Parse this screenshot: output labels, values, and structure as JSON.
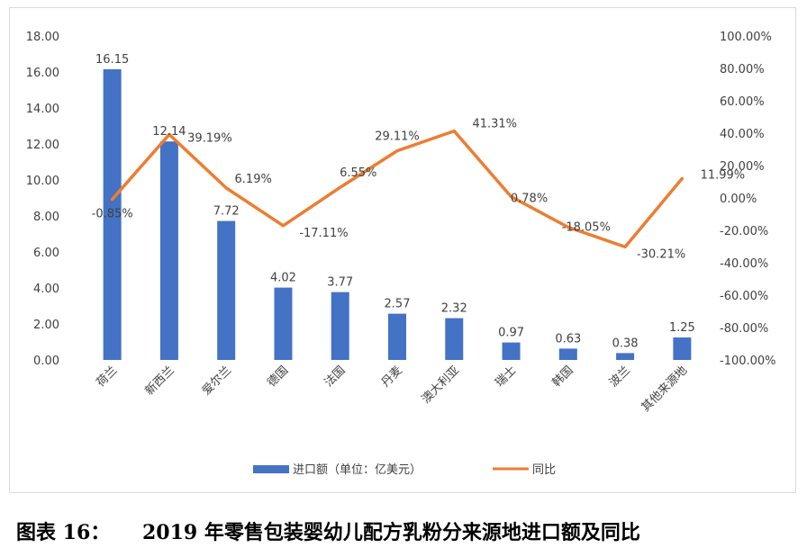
{
  "caption": {
    "label": "图表 16：",
    "title": "2019 年零售包装婴幼儿配方乳粉分来源地进口额及同比"
  },
  "chart_data": {
    "type": "bar+line",
    "categories": [
      "荷兰",
      "新西兰",
      "爱尔兰",
      "德国",
      "法国",
      "丹麦",
      "澳大利亚",
      "瑞士",
      "韩国",
      "波兰",
      "其他来源地"
    ],
    "series": [
      {
        "name": "进口额（单位：亿美元）",
        "type": "bar",
        "axis": "left",
        "color": "#4472C4",
        "values": [
          16.15,
          12.14,
          7.72,
          4.02,
          3.77,
          2.57,
          2.32,
          0.97,
          0.63,
          0.38,
          1.25
        ],
        "labels": [
          "16.15",
          "12.14",
          "7.72",
          "4.02",
          "3.77",
          "2.57",
          "2.32",
          "0.97",
          "0.63",
          "0.38",
          "1.25"
        ]
      },
      {
        "name": "同比",
        "type": "line",
        "axis": "right",
        "color": "#ED7D31",
        "values": [
          -0.85,
          39.19,
          6.19,
          -17.11,
          6.55,
          29.11,
          41.31,
          0.78,
          -18.05,
          -30.21,
          11.99
        ],
        "labels": [
          "-0.85%",
          "39.19%",
          "6.19%",
          "-17.11%",
          "6.55%",
          "29.11%",
          "41.31%",
          "0.78%",
          "-18.05%",
          "-30.21%",
          "11.99%"
        ]
      }
    ],
    "y_left": {
      "min": 0,
      "max": 18,
      "step": 2,
      "ticks": [
        "0.00",
        "2.00",
        "4.00",
        "6.00",
        "8.00",
        "10.00",
        "12.00",
        "14.00",
        "16.00",
        "18.00"
      ]
    },
    "y_right": {
      "min": -100,
      "max": 100,
      "step": 20,
      "ticks": [
        "-100.00%",
        "-80.00%",
        "-60.00%",
        "-40.00%",
        "-20.00%",
        "0.00%",
        "20.00%",
        "40.00%",
        "60.00%",
        "80.00%",
        "100.00%"
      ]
    },
    "legend": {
      "position": "bottom",
      "items": [
        "进口额（单位：亿美元）",
        "同比"
      ]
    },
    "grid": false
  }
}
